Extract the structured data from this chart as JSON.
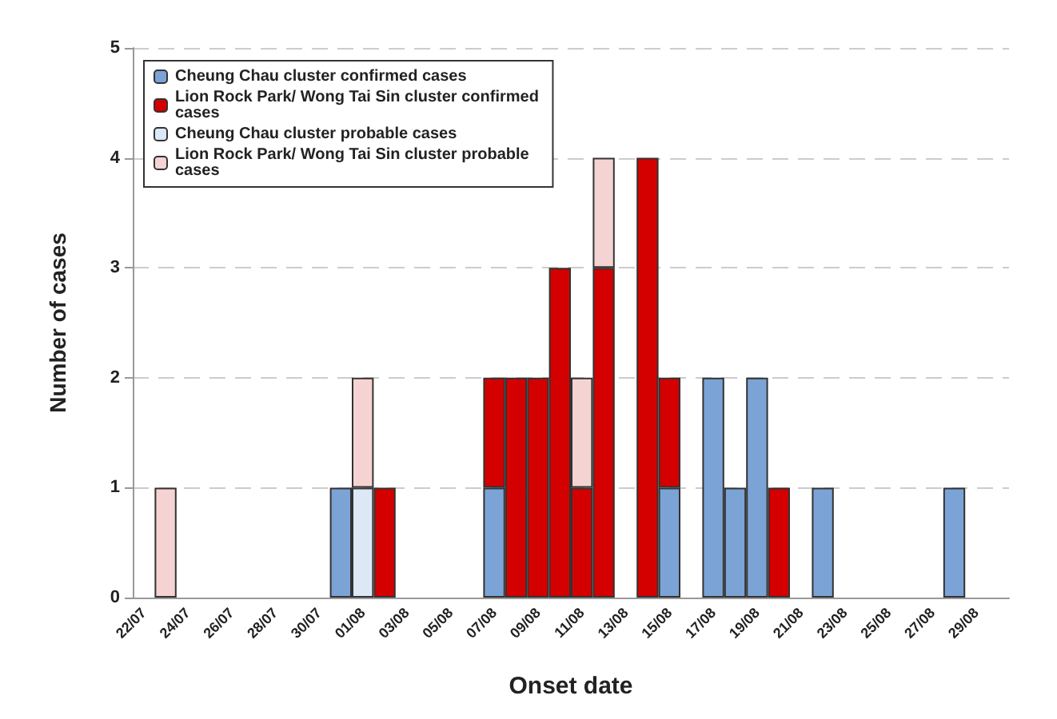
{
  "chart_data": {
    "type": "bar",
    "stacked": true,
    "xlabel": "Onset date",
    "ylabel": "Number of cases",
    "categories": [
      "22/07",
      null,
      "24/07",
      null,
      "26/07",
      null,
      "28/07",
      null,
      "30/07",
      null,
      "01/08",
      null,
      "03/08",
      null,
      "05/08",
      null,
      "07/08",
      null,
      "09/08",
      null,
      "11/08",
      null,
      "13/08",
      null,
      "15/08",
      null,
      "17/08",
      null,
      "19/08",
      null,
      "21/08",
      null,
      "23/08",
      null,
      "25/08",
      null,
      "27/08",
      null,
      "29/08",
      null
    ],
    "series": [
      {
        "name": "Cheung Chau cluster confirmed cases",
        "color": "#7ba3d6",
        "values": [
          null,
          null,
          null,
          null,
          null,
          null,
          null,
          null,
          null,
          1,
          null,
          null,
          null,
          null,
          null,
          null,
          1,
          null,
          null,
          null,
          null,
          null,
          null,
          null,
          1,
          null,
          2,
          1,
          2,
          null,
          null,
          1,
          null,
          null,
          null,
          null,
          null,
          1,
          null,
          null
        ]
      },
      {
        "name": "Lion Rock Park/ Wong Tai Sin cluster confirmed cases",
        "color": "#d40000",
        "values": [
          null,
          null,
          null,
          null,
          null,
          null,
          null,
          null,
          null,
          null,
          null,
          1,
          null,
          null,
          null,
          null,
          1,
          2,
          2,
          3,
          1,
          3,
          null,
          4,
          1,
          null,
          null,
          null,
          null,
          1,
          null,
          null,
          null,
          null,
          null,
          null,
          null,
          null,
          null,
          null
        ]
      },
      {
        "name": "Cheung Chau cluster probable cases",
        "color": "#dce8f5",
        "values": [
          null,
          null,
          null,
          null,
          null,
          null,
          null,
          null,
          null,
          null,
          1,
          null,
          null,
          null,
          null,
          null,
          null,
          null,
          null,
          null,
          null,
          null,
          null,
          null,
          null,
          null,
          null,
          null,
          null,
          null,
          null,
          null,
          null,
          null,
          null,
          null,
          null,
          null,
          null,
          null
        ]
      },
      {
        "name": "Lion Rock Park/ Wong Tai Sin cluster probable cases",
        "color": "#f6d3d3",
        "values": [
          null,
          1,
          null,
          null,
          null,
          null,
          null,
          null,
          null,
          null,
          1,
          null,
          null,
          null,
          null,
          null,
          null,
          null,
          null,
          null,
          1,
          1,
          null,
          null,
          null,
          null,
          null,
          null,
          null,
          null,
          null,
          null,
          null,
          null,
          null,
          null,
          null,
          null,
          null,
          null
        ]
      }
    ],
    "ylim": [
      0,
      5
    ],
    "yticks": [
      0,
      1,
      2,
      3,
      4,
      5
    ],
    "grid": "y",
    "legend": "top left"
  }
}
